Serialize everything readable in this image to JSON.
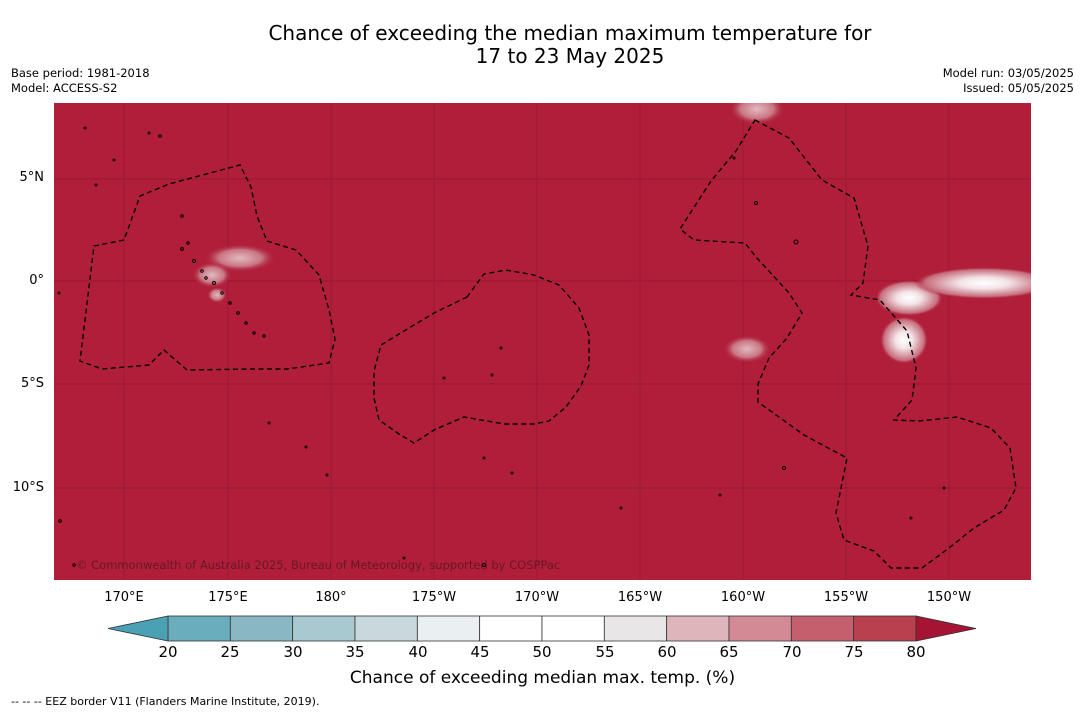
{
  "header": {
    "title_line1": "Chance of exceeding the median maximum temperature for",
    "title_line2": "17 to 23 May 2025",
    "base_period": "Base period: 1981-2018",
    "model": "Model: ACCESS-S2",
    "model_run": "Model run: 03/05/2025",
    "issued": "Issued: 05/05/2025"
  },
  "map": {
    "background_color": "#b01e3a",
    "copyright": "© Commonwealth of Australia 2025, Bureau of Meteorology, supported by COSPPac",
    "lat_labels": [
      "5°N",
      "0°",
      "5°S",
      "10°S"
    ],
    "lon_labels": [
      "170°E",
      "175°E",
      "180°",
      "175°W",
      "170°W",
      "165°W",
      "160°W",
      "155°W",
      "150°W"
    ]
  },
  "colorbar": {
    "ticks": [
      "20",
      "25",
      "30",
      "35",
      "40",
      "45",
      "50",
      "55",
      "60",
      "65",
      "70",
      "75",
      "80"
    ],
    "colors": [
      "#6aaebd",
      "#89b8c4",
      "#a8c9cf",
      "#c8d8dc",
      "#eaeff1",
      "#ffffff",
      "#ffffff",
      "#e8e6e7",
      "#dfb5bc",
      "#d48a95",
      "#c4606e",
      "#b8404f"
    ],
    "under_color": "#4aa1b4",
    "over_color": "#a51432",
    "label": "Chance of exceeding median max. temp. (%)"
  },
  "footnote": "--  --  -- EEZ border V11 (Flanders Marine Institute, 2019)."
}
